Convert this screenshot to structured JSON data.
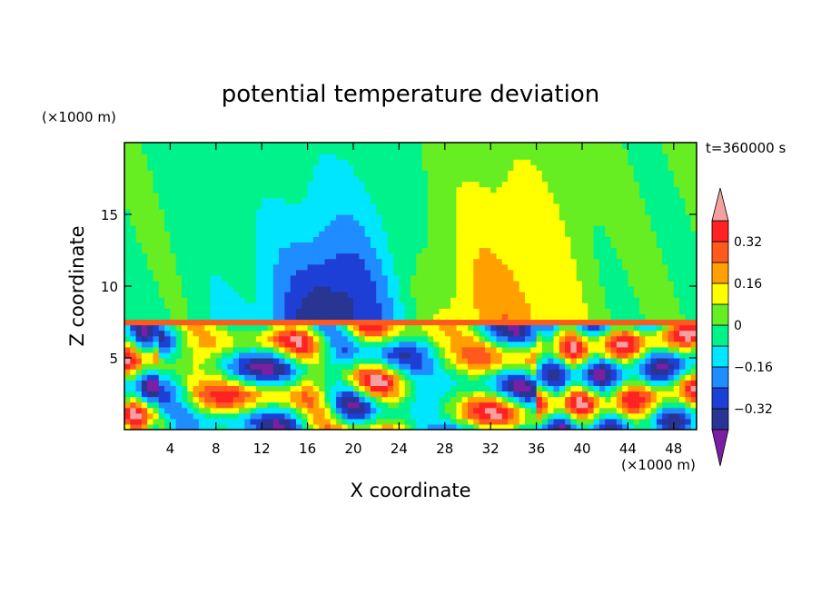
{
  "chart_data": {
    "type": "heatmap",
    "title": "potential temperature deviation",
    "time_label": "t=360000 s",
    "xlabel": "X coordinate",
    "ylabel": "Z coordinate",
    "x_unit": "(×1000 m)",
    "z_unit": "(×1000 m)",
    "xlim": [
      0,
      50
    ],
    "zlim": [
      0,
      20
    ],
    "x_ticks": [
      "4",
      "8",
      "12",
      "16",
      "20",
      "24",
      "28",
      "32",
      "36",
      "40",
      "44",
      "48"
    ],
    "z_ticks": [
      "5",
      "10",
      "15"
    ],
    "colorbar": {
      "labels": [
        "0.32",
        "0.16",
        "0",
        "−0.16",
        "−0.32"
      ],
      "label_values": [
        0.32,
        0.16,
        0,
        -0.16,
        -0.32
      ],
      "levels": [
        -0.4,
        -0.32,
        -0.24,
        -0.16,
        -0.08,
        0,
        0.08,
        0.16,
        0.24,
        0.32,
        0.4
      ],
      "colors": [
        "#7b1fa2",
        "#283593",
        "#1e3fd6",
        "#1f8cff",
        "#00e6ff",
        "#00f28a",
        "#66ee22",
        "#ffff00",
        "#ffa000",
        "#ff5a1e",
        "#ff2222",
        "#f5a0a0"
      ]
    }
  }
}
